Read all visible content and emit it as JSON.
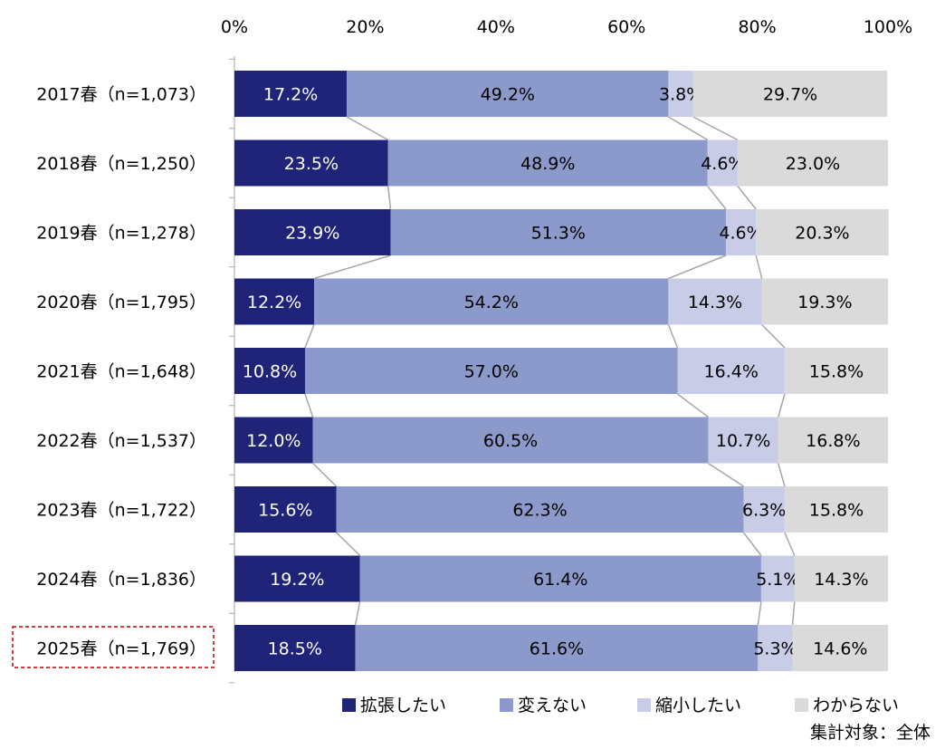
{
  "chart_data": {
    "type": "bar",
    "orientation": "horizontal",
    "stacked": "percent",
    "title": "",
    "xlabel": "",
    "ylabel": "",
    "xlim": [
      0,
      100
    ],
    "x_ticks": [
      "0%",
      "20%",
      "40%",
      "60%",
      "80%",
      "100%"
    ],
    "x_tick_position": "top",
    "grid": false,
    "legend_position": "bottom",
    "connector_lines": true,
    "categories": [
      "2017春（n=1,073）",
      "2018春（n=1,250）",
      "2019春（n=1,278）",
      "2020春（n=1,795）",
      "2021春（n=1,648）",
      "2022春（n=1,537）",
      "2023春（n=1,722）",
      "2024春（n=1,836）",
      "2025春（n=1,769）"
    ],
    "highlighted_category": "2025春（n=1,769）",
    "series": [
      {
        "name": "拡張したい",
        "color": "#1f2479",
        "label_color": "#ffffff",
        "values": [
          17.2,
          23.5,
          23.9,
          12.2,
          10.8,
          12.0,
          15.6,
          19.2,
          18.5
        ]
      },
      {
        "name": "変えない",
        "color": "#8c9acb",
        "label_color": "#000000",
        "values": [
          49.2,
          48.9,
          51.3,
          54.2,
          57.0,
          60.5,
          62.3,
          61.4,
          61.6
        ]
      },
      {
        "name": "縮小したい",
        "color": "#c8cce6",
        "label_color": "#000000",
        "values": [
          3.8,
          4.6,
          4.6,
          14.3,
          16.4,
          10.7,
          6.3,
          5.1,
          5.3
        ]
      },
      {
        "name": "わからない",
        "color": "#dadada",
        "label_color": "#000000",
        "values": [
          29.7,
          23.0,
          20.3,
          19.3,
          15.8,
          16.8,
          15.8,
          14.3,
          14.6
        ]
      }
    ]
  },
  "footnote": "集計対象：全体"
}
